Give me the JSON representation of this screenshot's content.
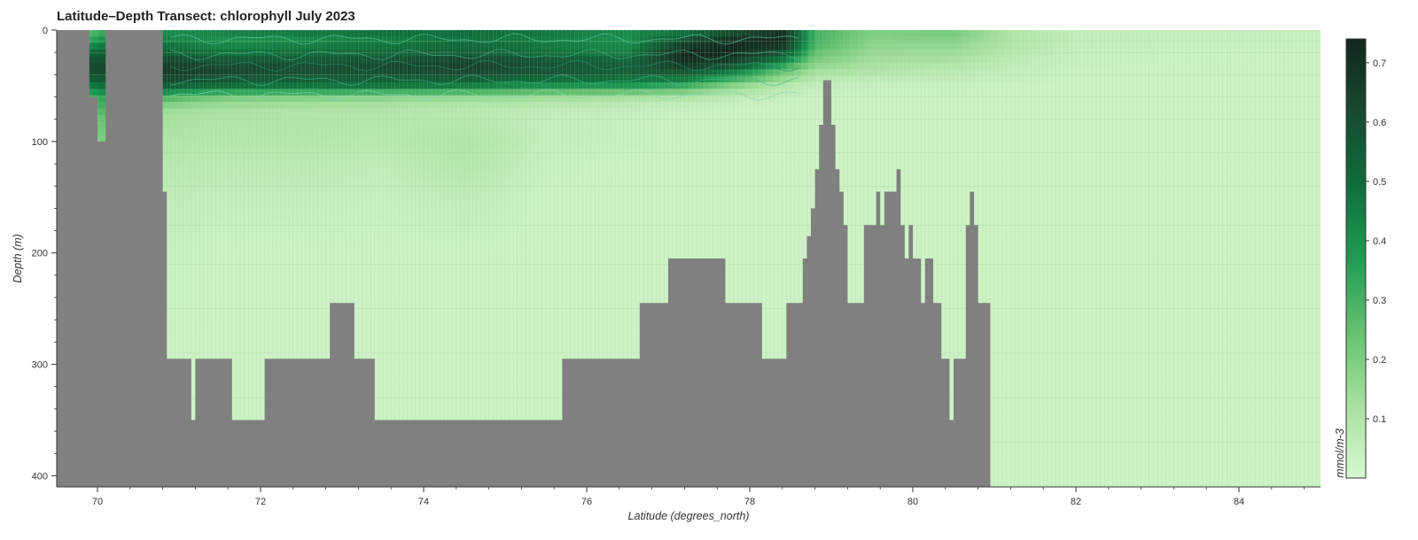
{
  "chart_data": {
    "type": "heatmap",
    "title": "Latitude–Depth Transect: chlorophyll July 2023",
    "xlabel": "Latitude (degrees_north)",
    "ylabel": "Depth (m)",
    "xlim": [
      69.5,
      85.0
    ],
    "ylim": [
      410,
      0
    ],
    "y_inverted": true,
    "x_ticks": [
      70,
      72,
      74,
      76,
      78,
      80,
      82,
      84
    ],
    "y_ticks": [
      0,
      100,
      200,
      300,
      400
    ],
    "colorbar": {
      "label": "mmol/m-3",
      "range": [
        0.0,
        0.74
      ],
      "ticks": [
        0.1,
        0.2,
        0.3,
        0.4,
        0.5,
        0.6,
        0.7
      ],
      "colors": [
        "#d8f7d2",
        "#a7e19e",
        "#64c16f",
        "#1f9b55",
        "#0f6e3c",
        "#174a30",
        "#12261c"
      ]
    },
    "chlorophyll_profile": {
      "depths": [
        0,
        10,
        20,
        30,
        40,
        50,
        60,
        70,
        80,
        100,
        120,
        150,
        200,
        300,
        410
      ],
      "latitudes": [
        69.9,
        70.1,
        70.8,
        71.5,
        72.5,
        73.5,
        74.5,
        75.5,
        76.5,
        77.2,
        77.8,
        78.4,
        78.8,
        79.5,
        80.5,
        81.2,
        82.0,
        85.0
      ],
      "values": [
        [
          0.25,
          0.3,
          0.4,
          0.45,
          0.48,
          0.5,
          0.5,
          0.48,
          0.42,
          0.45,
          0.58,
          0.7,
          0.3,
          0.2,
          0.22,
          0.1,
          0.05,
          0.04
        ],
        [
          0.35,
          0.42,
          0.45,
          0.4,
          0.42,
          0.45,
          0.5,
          0.45,
          0.4,
          0.62,
          0.72,
          0.74,
          0.3,
          0.18,
          0.18,
          0.1,
          0.05,
          0.04
        ],
        [
          0.5,
          0.55,
          0.55,
          0.48,
          0.5,
          0.52,
          0.55,
          0.5,
          0.45,
          0.74,
          0.74,
          0.6,
          0.25,
          0.15,
          0.14,
          0.08,
          0.04,
          0.03
        ],
        [
          0.62,
          0.62,
          0.66,
          0.62,
          0.6,
          0.62,
          0.66,
          0.6,
          0.55,
          0.7,
          0.62,
          0.38,
          0.18,
          0.12,
          0.1,
          0.06,
          0.04,
          0.03
        ],
        [
          0.6,
          0.62,
          0.68,
          0.64,
          0.6,
          0.6,
          0.62,
          0.58,
          0.55,
          0.55,
          0.4,
          0.2,
          0.1,
          0.08,
          0.06,
          0.05,
          0.03,
          0.03
        ],
        [
          0.45,
          0.5,
          0.55,
          0.5,
          0.48,
          0.48,
          0.45,
          0.4,
          0.38,
          0.32,
          0.18,
          0.08,
          0.05,
          0.04,
          0.04,
          0.03,
          0.03,
          0.03
        ],
        [
          0.3,
          0.35,
          0.3,
          0.22,
          0.2,
          0.18,
          0.16,
          0.14,
          0.12,
          0.1,
          0.06,
          0.04,
          0.03,
          0.03,
          0.03,
          0.03,
          0.03,
          0.03
        ],
        [
          0.25,
          0.3,
          0.15,
          0.12,
          0.1,
          0.1,
          0.08,
          0.06,
          0.05,
          0.04,
          0.03,
          0.03,
          0.03,
          0.03,
          0.03,
          0.03,
          0.03,
          0.03
        ],
        [
          0.2,
          0.25,
          0.12,
          0.1,
          0.1,
          0.09,
          0.08,
          0.05,
          0.04,
          0.03,
          0.03,
          0.03,
          0.03,
          0.03,
          0.03,
          0.03,
          0.03,
          0.03
        ],
        [
          0.18,
          0.2,
          0.1,
          0.09,
          0.09,
          0.08,
          0.1,
          0.05,
          0.04,
          0.03,
          0.03,
          0.03,
          0.03,
          0.03,
          0.03,
          0.03,
          0.03,
          0.03
        ],
        [
          0.15,
          0.18,
          0.08,
          0.07,
          0.07,
          0.06,
          0.09,
          0.04,
          0.03,
          0.03,
          0.03,
          0.03,
          0.03,
          0.03,
          0.03,
          0.03,
          0.03,
          0.03
        ],
        [
          0.1,
          0.1,
          0.06,
          0.05,
          0.05,
          0.04,
          0.06,
          0.03,
          0.03,
          0.03,
          0.03,
          0.03,
          0.03,
          0.03,
          0.03,
          0.03,
          0.03,
          0.03
        ],
        [
          0.05,
          0.05,
          0.04,
          0.03,
          0.03,
          0.03,
          0.03,
          0.03,
          0.03,
          0.03,
          0.03,
          0.03,
          0.03,
          0.03,
          0.03,
          0.03,
          0.03,
          0.03
        ],
        [
          0.03,
          0.03,
          0.03,
          0.03,
          0.03,
          0.03,
          0.03,
          0.03,
          0.03,
          0.03,
          0.03,
          0.03,
          0.03,
          0.03,
          0.03,
          0.03,
          0.03,
          0.03
        ],
        [
          0.03,
          0.03,
          0.03,
          0.03,
          0.03,
          0.03,
          0.03,
          0.03,
          0.03,
          0.03,
          0.03,
          0.03,
          0.03,
          0.03,
          0.03,
          0.03,
          0.03,
          0.03
        ]
      ]
    },
    "bathymetry": {
      "mask_color": "#808080",
      "lat": [
        69.5,
        69.9,
        69.9,
        70.0,
        70.0,
        70.1,
        70.1,
        70.8,
        70.8,
        70.85,
        70.85,
        71.15,
        71.15,
        71.2,
        71.2,
        71.65,
        71.65,
        72.05,
        72.05,
        72.85,
        72.85,
        73.15,
        73.15,
        73.4,
        73.4,
        75.7,
        75.7,
        76.65,
        76.65,
        77.0,
        77.0,
        77.7,
        77.7,
        78.15,
        78.15,
        78.45,
        78.45,
        78.65,
        78.65,
        78.7,
        78.7,
        78.75,
        78.75,
        78.8,
        78.8,
        78.85,
        78.85,
        78.9,
        78.9,
        79.0,
        79.0,
        79.05,
        79.05,
        79.1,
        79.1,
        79.15,
        79.15,
        79.2,
        79.2,
        79.4,
        79.4,
        79.55,
        79.55,
        79.6,
        79.6,
        79.65,
        79.65,
        79.8,
        79.8,
        79.85,
        79.85,
        79.9,
        79.9,
        79.95,
        79.95,
        80.0,
        80.0,
        80.1,
        80.1,
        80.15,
        80.15,
        80.25,
        80.25,
        80.35,
        80.35,
        80.45,
        80.45,
        80.5,
        80.5,
        80.65,
        80.65,
        80.7,
        80.7,
        80.75,
        80.75,
        80.8,
        80.8,
        80.95,
        80.95,
        81.15,
        81.15,
        81.35,
        81.35,
        81.5,
        81.5,
        81.55,
        81.55
      ],
      "depth": [
        0,
        0,
        60,
        60,
        100,
        100,
        0,
        0,
        145,
        145,
        295,
        295,
        350,
        350,
        295,
        295,
        350,
        350,
        295,
        295,
        245,
        245,
        295,
        295,
        350,
        350,
        295,
        295,
        245,
        245,
        205,
        205,
        245,
        245,
        295,
        295,
        245,
        245,
        205,
        205,
        185,
        185,
        160,
        160,
        125,
        125,
        85,
        85,
        45,
        45,
        85,
        85,
        125,
        125,
        145,
        145,
        175,
        175,
        245,
        245,
        175,
        175,
        145,
        145,
        175,
        175,
        145,
        145,
        125,
        125,
        175,
        175,
        205,
        205,
        175,
        175,
        205,
        205,
        245,
        245,
        205,
        205,
        245,
        245,
        295,
        295,
        350,
        350,
        295,
        295,
        175,
        175,
        145,
        145,
        175,
        175,
        245,
        245,
        410,
        410,
        410,
        410,
        410,
        410,
        410,
        410,
        410
      ]
    }
  }
}
